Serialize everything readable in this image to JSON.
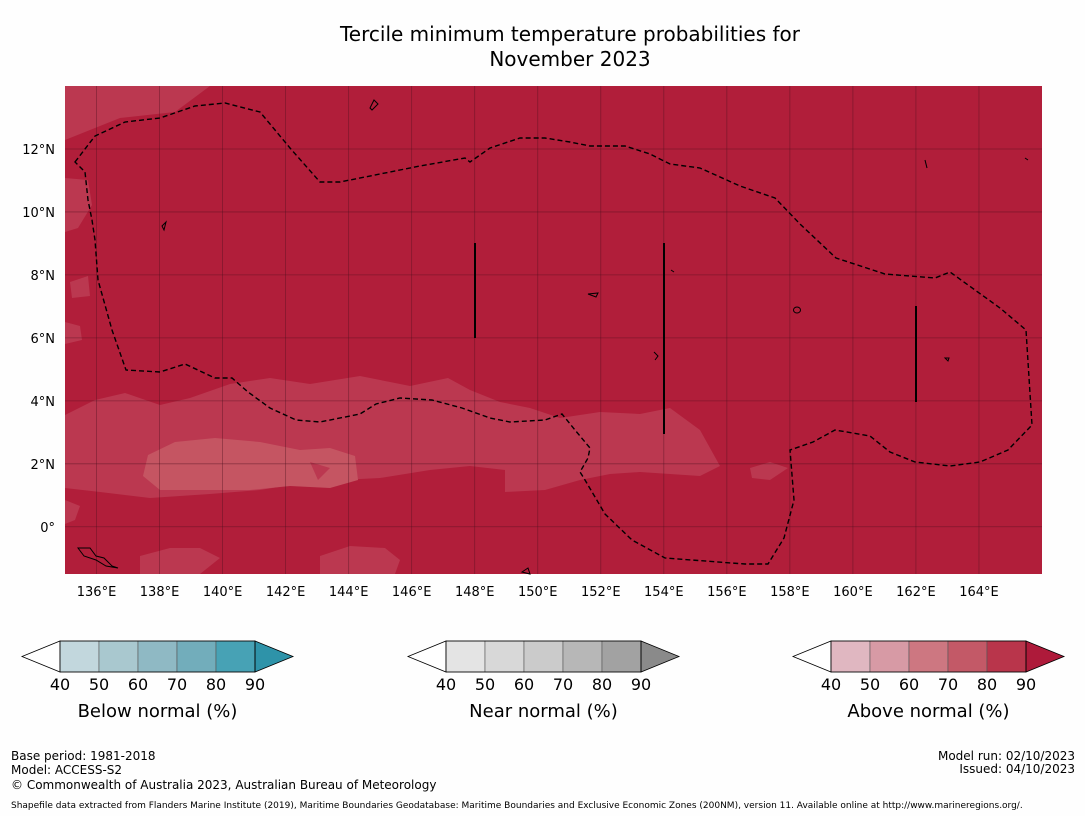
{
  "title": {
    "line1": "Tercile minimum temperature probabilities for",
    "line2": "November 2023"
  },
  "map": {
    "lat_ticks": [
      "12°N",
      "10°N",
      "8°N",
      "6°N",
      "4°N",
      "2°N",
      "0°"
    ],
    "lon_ticks": [
      "136°E",
      "138°E",
      "140°E",
      "142°E",
      "144°E",
      "146°E",
      "148°E",
      "150°E",
      "152°E",
      "154°E",
      "156°E",
      "158°E",
      "160°E",
      "162°E",
      "164°E"
    ],
    "lat_range": [
      -1.5,
      14
    ],
    "lon_range": [
      135,
      166
    ],
    "colors": {
      "above_90": "#b11e3a",
      "above_80": "#bb3850",
      "above_70": "#c55562"
    }
  },
  "colorbars": [
    {
      "label": "Below normal (%)",
      "ticks": [
        "40",
        "50",
        "60",
        "70",
        "80",
        "90"
      ],
      "colors": [
        "#c2d7dd",
        "#a9c8cf",
        "#8fb9c4",
        "#72adbb",
        "#47a2b5",
        "#2e93a9"
      ]
    },
    {
      "label": "Near normal (%)",
      "ticks": [
        "40",
        "50",
        "60",
        "70",
        "80",
        "90"
      ],
      "colors": [
        "#e4e4e4",
        "#d8d8d8",
        "#cbcbcb",
        "#b7b7b7",
        "#a2a2a2",
        "#8a8a8a"
      ]
    },
    {
      "label": "Above normal (%)",
      "ticks": [
        "40",
        "50",
        "60",
        "70",
        "80",
        "90"
      ],
      "colors": [
        "#e0b7c1",
        "#d79aa5",
        "#cd7781",
        "#c35967",
        "#b9354b",
        "#ae1a3a"
      ]
    }
  ],
  "footer": {
    "base_period": "Base period: 1981-2018",
    "model": "Model: ACCESS-S2",
    "copyright": "© Commonwealth of Australia 2023, Australian Bureau of Meteorology",
    "model_run": "Model run: 02/10/2023",
    "issued": "Issued: 04/10/2023",
    "shapefile": "Shapefile data extracted from Flanders Marine Institute (2019), Maritime Boundaries Geodatabase: Maritime Boundaries and Exclusive Economic Zones (200NM), version 11. Available online at http://www.marineregions.org/."
  }
}
